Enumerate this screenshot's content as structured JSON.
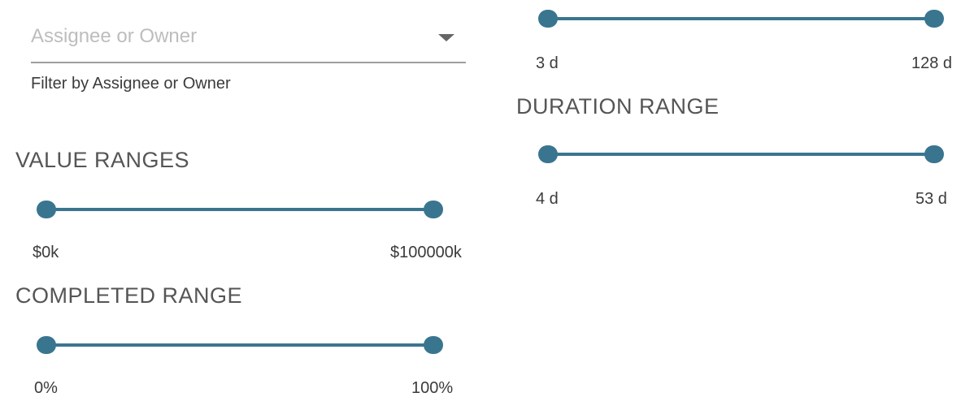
{
  "filter": {
    "assignee_placeholder": "Assignee or Owner",
    "assignee_helper": "Filter by Assignee or Owner"
  },
  "sliders": {
    "top": {
      "min_label": "3 d",
      "max_label": "128 d",
      "low": 0,
      "high": 1
    },
    "duration": {
      "title": "DURATION RANGE",
      "min_label": "4 d",
      "max_label": "53 d",
      "low": 0,
      "high": 1
    },
    "value": {
      "title": "VALUE RANGES",
      "min_label": "$0k",
      "max_label": "$100000k",
      "low": 0,
      "high": 1
    },
    "completed": {
      "title": "COMPLETED RANGE",
      "min_label": "0%",
      "max_label": "100%",
      "low": 0,
      "high": 1
    }
  },
  "colors": {
    "slider_accent": "#3a7590",
    "title_text": "#555555",
    "placeholder": "#bdbdbd"
  },
  "icons": {
    "select_arrow": "caret-down-icon"
  }
}
